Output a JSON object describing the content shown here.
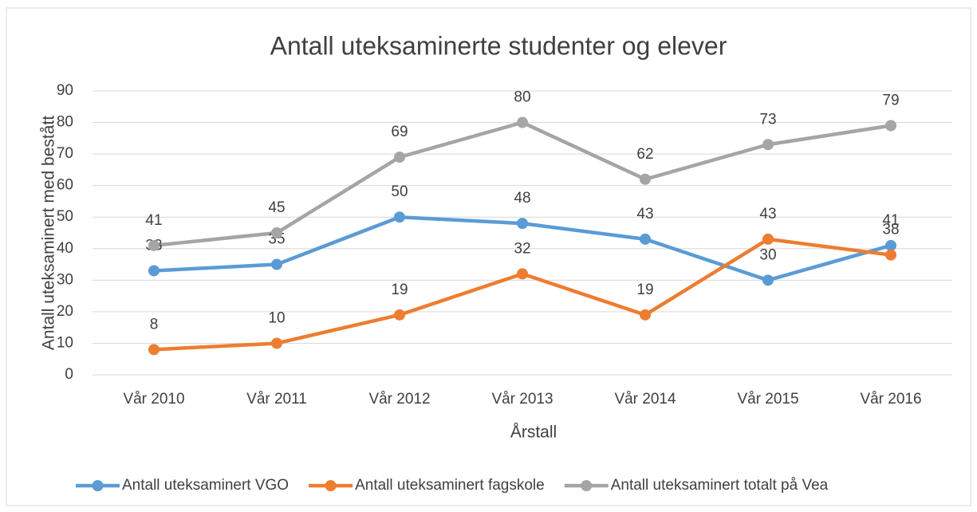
{
  "chart_data": {
    "type": "line",
    "title": "Antall uteksaminerte studenter og elever",
    "x_label": "Årstall",
    "y_label": "Antall uteksaminert med bestått",
    "categories": [
      "Vår 2010",
      "Vår 2011",
      "Vår 2012",
      "Vår 2013",
      "Vår 2014",
      "Vår 2015",
      "Vår 2016"
    ],
    "series": [
      {
        "name": "Antall uteksaminert VGO",
        "color": "#5b9bd5",
        "values": [
          33,
          35,
          50,
          48,
          43,
          30,
          41
        ]
      },
      {
        "name": "Antall uteksaminert fagskole",
        "color": "#ed7d31",
        "values": [
          8,
          10,
          19,
          32,
          19,
          43,
          38
        ]
      },
      {
        "name": "Antall uteksaminert totalt på Vea",
        "color": "#a5a5a5",
        "values": [
          41,
          45,
          69,
          80,
          62,
          73,
          79
        ]
      }
    ],
    "ylim": [
      0,
      90
    ],
    "yticks": [
      0,
      10,
      20,
      30,
      40,
      50,
      60,
      70,
      80,
      90
    ],
    "grid": true,
    "legend": "bottom"
  }
}
